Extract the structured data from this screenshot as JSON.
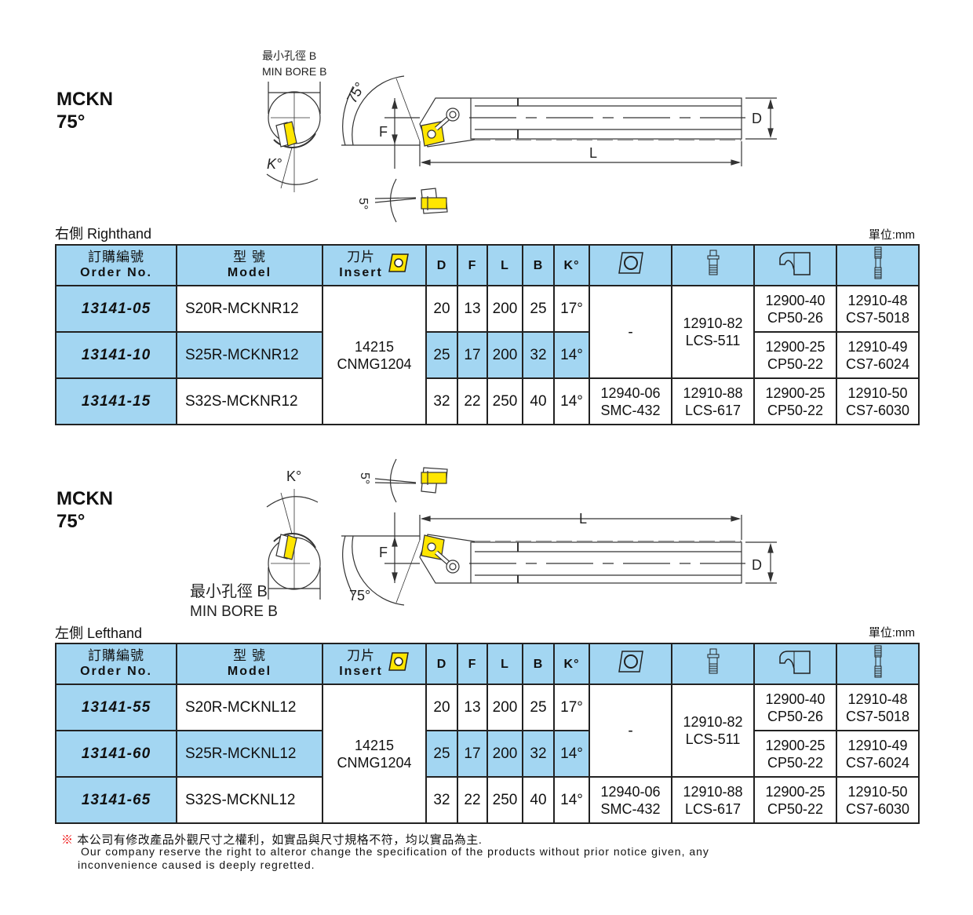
{
  "colors": {
    "header_blue": "#a3d6f2",
    "insert_yellow": "#ffe600",
    "border": "#222222"
  },
  "header": {
    "order_cn": "訂購編號",
    "order_en": "Order No.",
    "model_cn": "型 號",
    "model_en": "Model",
    "insert_cn": "刀片",
    "insert_en": "Insert",
    "D": "D",
    "F": "F",
    "L": "L",
    "B": "B",
    "K": "K°",
    "icons": [
      "insert-icon",
      "shim-icon",
      "pin-icon",
      "clamp-icon",
      "screw-icon"
    ]
  },
  "sections": [
    {
      "title": "MCKN",
      "angle": "75°",
      "hand": "右側 Righthand",
      "unit": "單位:mm",
      "drawing": {
        "bore_cn": "最小孔徑 B",
        "bore_en": "MIN BORE B",
        "angle": "75°",
        "F": "F",
        "D": "D",
        "L": "L",
        "K": "K°",
        "incl": "5°"
      },
      "insert": {
        "code": "14215",
        "name": "CNMG1204"
      },
      "shim": [
        {
          "code": "-"
        },
        {
          "code": "12940-06",
          "name": "SMC-432"
        }
      ],
      "pin": [
        {
          "code": "12910-82",
          "name": "LCS-511"
        },
        {
          "code": "12910-88",
          "name": "LCS-617"
        }
      ],
      "rows": [
        {
          "order": "13141-05",
          "model": "S20R-MCKNR12",
          "D": "20",
          "F": "13",
          "L": "200",
          "B": "25",
          "K": "17°",
          "clamp": {
            "code": "12900-40",
            "name": "CP50-26"
          },
          "screw": {
            "code": "12910-48",
            "name": "CS7-5018"
          }
        },
        {
          "order": "13141-10",
          "model": "S25R-MCKNR12",
          "D": "25",
          "F": "17",
          "L": "200",
          "B": "32",
          "K": "14°",
          "clamp": {
            "code": "12900-25",
            "name": "CP50-22"
          },
          "screw": {
            "code": "12910-49",
            "name": "CS7-6024"
          }
        },
        {
          "order": "13141-15",
          "model": "S32S-MCKNR12",
          "D": "32",
          "F": "22",
          "L": "250",
          "B": "40",
          "K": "14°",
          "clamp": {
            "code": "12900-25",
            "name": "CP50-22"
          },
          "screw": {
            "code": "12910-50",
            "name": "CS7-6030"
          }
        }
      ]
    },
    {
      "title": "MCKN",
      "angle": "75°",
      "hand": "左側 Lefthand",
      "unit": "單位:mm",
      "drawing": {
        "bore_cn": "最小孔徑 B",
        "bore_en": "MIN BORE B",
        "angle": "75°",
        "F": "F",
        "D": "D",
        "L": "L",
        "K": "K°",
        "incl": "5°"
      },
      "insert": {
        "code": "14215",
        "name": "CNMG1204"
      },
      "shim": [
        {
          "code": "-"
        },
        {
          "code": "12940-06",
          "name": "SMC-432"
        }
      ],
      "pin": [
        {
          "code": "12910-82",
          "name": "LCS-511"
        },
        {
          "code": "12910-88",
          "name": "LCS-617"
        }
      ],
      "rows": [
        {
          "order": "13141-55",
          "model": "S20R-MCKNL12",
          "D": "20",
          "F": "13",
          "L": "200",
          "B": "25",
          "K": "17°",
          "clamp": {
            "code": "12900-40",
            "name": "CP50-26"
          },
          "screw": {
            "code": "12910-48",
            "name": "CS7-5018"
          }
        },
        {
          "order": "13141-60",
          "model": "S25R-MCKNL12",
          "D": "25",
          "F": "17",
          "L": "200",
          "B": "32",
          "K": "14°",
          "clamp": {
            "code": "12900-25",
            "name": "CP50-22"
          },
          "screw": {
            "code": "12910-49",
            "name": "CS7-6024"
          }
        },
        {
          "order": "13141-65",
          "model": "S32S-MCKNL12",
          "D": "32",
          "F": "22",
          "L": "250",
          "B": "40",
          "K": "14°",
          "clamp": {
            "code": "12900-25",
            "name": "CP50-22"
          },
          "screw": {
            "code": "12910-50",
            "name": "CS7-6030"
          }
        }
      ]
    }
  ],
  "footer": {
    "mark": "※",
    "cn": "本公司有修改產品外觀尺寸之權利，如實品與尺寸規格不符，均以實品為主.",
    "en1": "Our company reserve the right to alteror change the specification of the products without prior notice given, any",
    "en2": "inconvenience caused is deeply regretted."
  }
}
